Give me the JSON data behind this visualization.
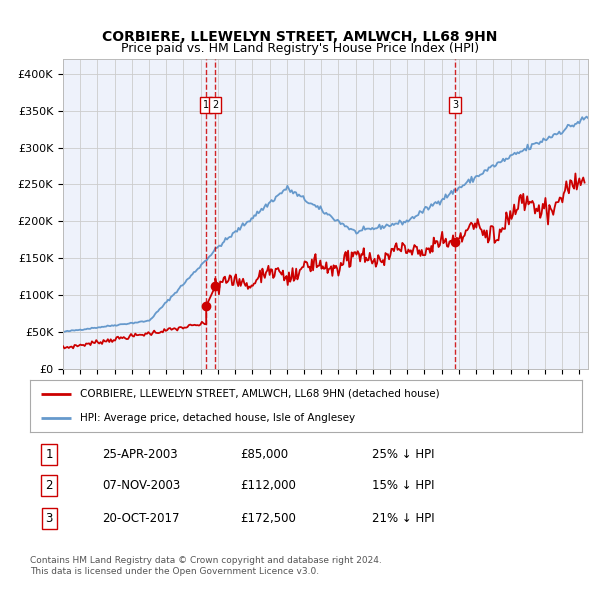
{
  "title": "CORBIERE, LLEWELYN STREET, AMLWCH, LL68 9HN",
  "subtitle": "Price paid vs. HM Land Registry's House Price Index (HPI)",
  "ylabel_ticks": [
    "£0",
    "£50K",
    "£100K",
    "£150K",
    "£200K",
    "£250K",
    "£300K",
    "£350K",
    "£400K"
  ],
  "ytick_values": [
    0,
    50000,
    100000,
    150000,
    200000,
    250000,
    300000,
    350000,
    400000
  ],
  "ylim": [
    0,
    420000
  ],
  "xlim_start": 1995.0,
  "xlim_end": 2025.5,
  "sale_dates": [
    2003.32,
    2003.85,
    2017.8
  ],
  "sale_prices": [
    85000,
    112000,
    172500
  ],
  "sale_labels": [
    "1",
    "2",
    "3"
  ],
  "vline_color": "#cc0000",
  "sale_marker_color": "#cc0000",
  "property_line_color": "#cc0000",
  "hpi_line_color": "#6699cc",
  "background_color": "#eef2fb",
  "grid_color": "#cccccc",
  "legend_entries": [
    "CORBIERE, LLEWELYN STREET, AMLWCH, LL68 9HN (detached house)",
    "HPI: Average price, detached house, Isle of Anglesey"
  ],
  "table_data": [
    [
      "1",
      "25-APR-2003",
      "£85,000",
      "25% ↓ HPI"
    ],
    [
      "2",
      "07-NOV-2003",
      "£112,000",
      "15% ↓ HPI"
    ],
    [
      "3",
      "20-OCT-2017",
      "£172,500",
      "21% ↓ HPI"
    ]
  ],
  "footer": "Contains HM Land Registry data © Crown copyright and database right 2024.\nThis data is licensed under the Open Government Licence v3.0.",
  "title_fontsize": 10,
  "subtitle_fontsize": 9
}
